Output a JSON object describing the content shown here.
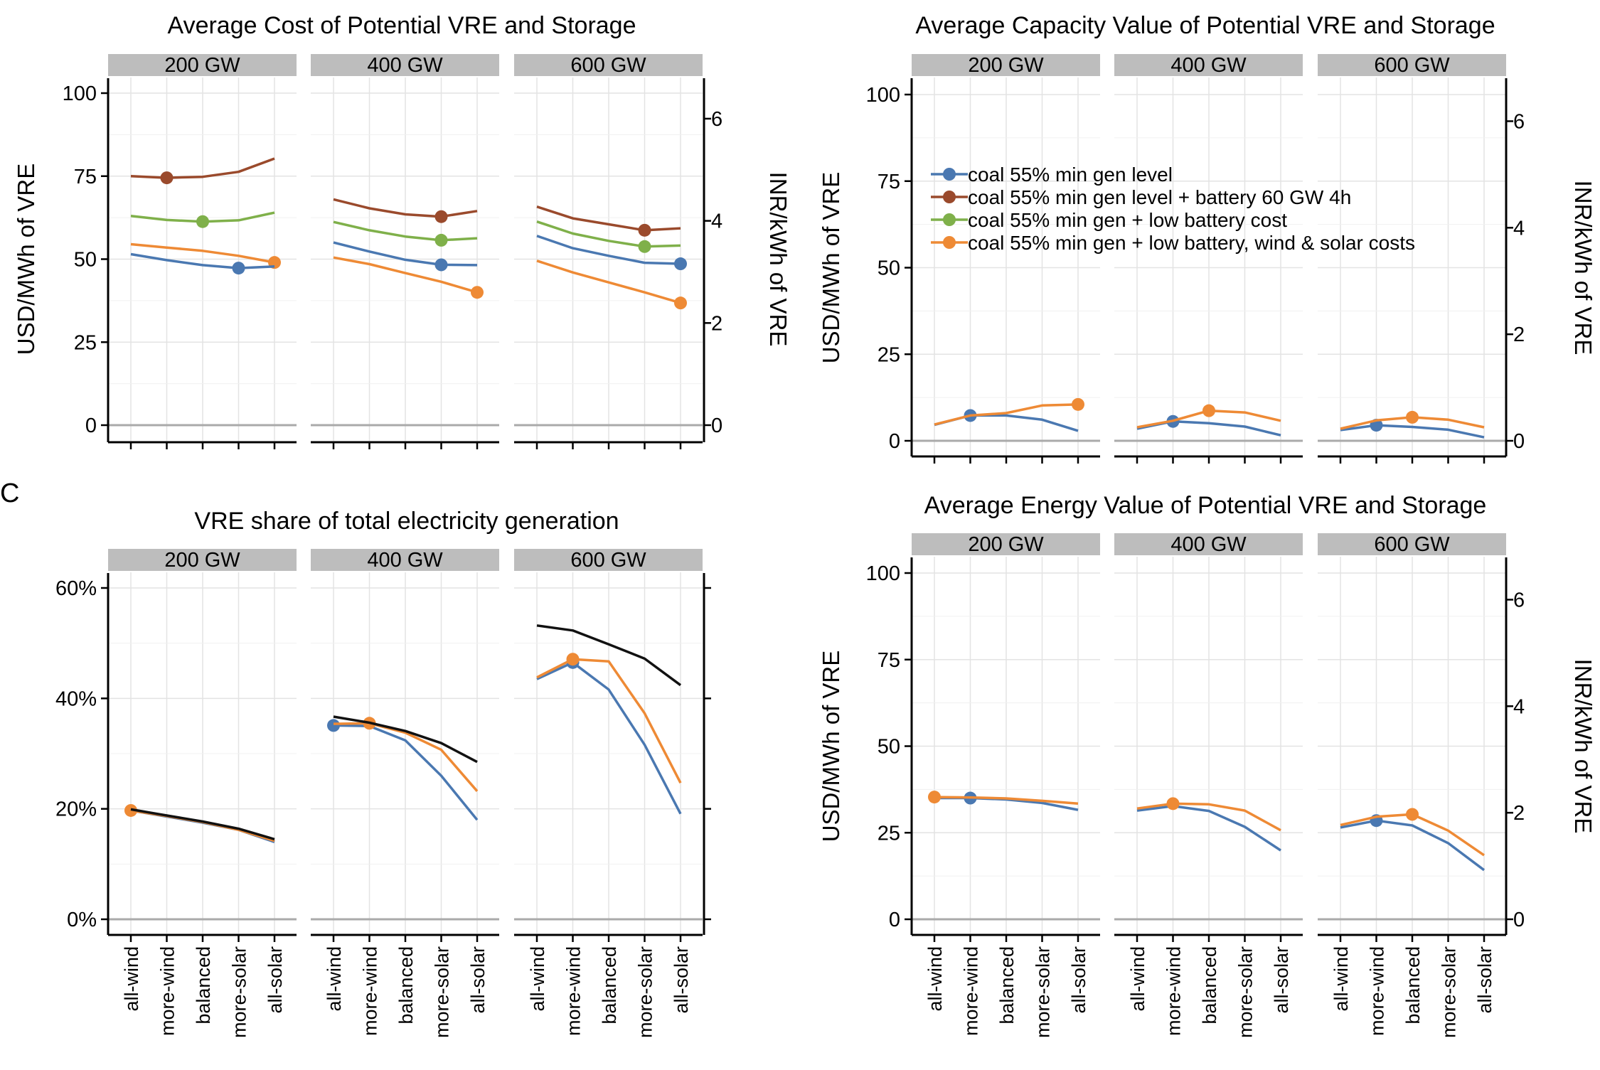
{
  "panel_label_c": "C",
  "categories": [
    "all-wind",
    "more-wind",
    "balanced",
    "more-solar",
    "all-solar"
  ],
  "facets": [
    "200 GW",
    "400 GW",
    "600 GW"
  ],
  "colors": {
    "blue": "#4a78b1",
    "brown": "#9a4a2c",
    "green": "#7fb04a",
    "orange": "#ee8a35",
    "black": "#111111",
    "strip": "#bdbdbd",
    "grid": "#e3e3e3",
    "zero": "#aaaaaa"
  },
  "legend": [
    {
      "label": "coal 55% min gen level",
      "color": "#4a78b1"
    },
    {
      "label": "coal 55% min gen level + battery 60 GW 4h",
      "color": "#9a4a2c"
    },
    {
      "label": "coal 55% min gen + low battery cost",
      "color": "#7fb04a"
    },
    {
      "label": "coal 55% min gen + low battery, wind & solar costs",
      "color": "#ee8a35"
    }
  ],
  "chart_data": [
    {
      "id": "cost",
      "type": "line",
      "title": "Average Cost of Potential VRE and Storage",
      "ylabel": "USD/MWh of VRE",
      "ylabel_right": "INR/kWh of VRE",
      "ylim": [
        0,
        100
      ],
      "yticks": [
        "0",
        "25",
        "50",
        "75",
        "100"
      ],
      "yticks_right": [
        "0",
        "2",
        "4",
        "6"
      ],
      "y2lim": [
        0,
        6.5
      ],
      "show_x_labels": false,
      "facets": [
        {
          "name": "200 GW",
          "series": [
            {
              "color": "brown",
              "values": [
                75,
                74.5,
                74.8,
                76.3,
                80.3
              ],
              "marker": 1
            },
            {
              "color": "green",
              "values": [
                63,
                61.8,
                61.3,
                61.7,
                64
              ],
              "marker": 2
            },
            {
              "color": "orange",
              "values": [
                54.5,
                53.5,
                52.5,
                51,
                49
              ],
              "marker": 4
            },
            {
              "color": "blue",
              "values": [
                51.5,
                49.7,
                48.2,
                47.3,
                47.8
              ],
              "marker": 3
            }
          ]
        },
        {
          "name": "400 GW",
          "series": [
            {
              "color": "brown",
              "values": [
                68,
                65.3,
                63.5,
                62.8,
                64.5
              ],
              "marker": 3
            },
            {
              "color": "green",
              "values": [
                61.2,
                58.7,
                56.8,
                55.7,
                56.3
              ],
              "marker": 3
            },
            {
              "color": "blue",
              "values": [
                55,
                52.3,
                49.8,
                48.3,
                48.2
              ],
              "marker": 3
            },
            {
              "color": "orange",
              "values": [
                50.5,
                48.5,
                45.8,
                43.2,
                40
              ],
              "marker": 4
            }
          ]
        },
        {
          "name": "600 GW",
          "series": [
            {
              "color": "brown",
              "values": [
                65.8,
                62.3,
                60.5,
                58.7,
                59.3
              ],
              "marker": 3
            },
            {
              "color": "green",
              "values": [
                61.3,
                57.7,
                55.5,
                53.8,
                54.1
              ],
              "marker": 3
            },
            {
              "color": "blue",
              "values": [
                57,
                53.3,
                51,
                48.9,
                48.6
              ],
              "marker": 4
            },
            {
              "color": "orange",
              "values": [
                49.5,
                46,
                43,
                40,
                36.8
              ],
              "marker": 4
            }
          ]
        }
      ]
    },
    {
      "id": "capacity",
      "type": "line",
      "title": "Average Capacity Value of Potential VRE and Storage",
      "ylabel": "USD/MWh of VRE",
      "ylabel_right": "INR/kWh of VRE",
      "ylim": [
        0,
        100
      ],
      "yticks": [
        "0",
        "25",
        "50",
        "75",
        "100"
      ],
      "yticks_right": [
        "0",
        "2",
        "4",
        "6"
      ],
      "y2lim": [
        0,
        6.5
      ],
      "show_x_labels": false,
      "facets": [
        {
          "name": "200 GW",
          "series": [
            {
              "color": "blue",
              "values": [
                4.6,
                7.3,
                7.3,
                6.1,
                2.9
              ],
              "marker": 1
            },
            {
              "color": "orange",
              "values": [
                4.7,
                7.3,
                8.0,
                10.2,
                10.5
              ],
              "marker": 4
            }
          ]
        },
        {
          "name": "400 GW",
          "series": [
            {
              "color": "blue",
              "values": [
                3.5,
                5.6,
                5.1,
                4.1,
                1.6
              ],
              "marker": 1
            },
            {
              "color": "orange",
              "values": [
                3.9,
                5.8,
                8.7,
                8.2,
                5.8
              ],
              "marker": 2
            }
          ]
        },
        {
          "name": "600 GW",
          "series": [
            {
              "color": "blue",
              "values": [
                3.1,
                4.5,
                4.0,
                3.2,
                1.0
              ],
              "marker": 1
            },
            {
              "color": "orange",
              "values": [
                3.5,
                5.9,
                6.8,
                6.1,
                3.9
              ],
              "marker": 2
            }
          ]
        }
      ]
    },
    {
      "id": "share",
      "type": "line",
      "title": "VRE share of total electricity generation",
      "ylabel": "",
      "ylim": [
        0,
        60
      ],
      "yticks": [
        "0%",
        "20%",
        "40%",
        "60%"
      ],
      "right_ticks_only": true,
      "show_x_labels": true,
      "facets": [
        {
          "name": "200 GW",
          "series": [
            {
              "color": "blue",
              "values": [
                19.7,
                18.6,
                17.5,
                16.2,
                14.0
              ],
              "marker": -1
            },
            {
              "color": "orange",
              "values": [
                19.7,
                18.7,
                17.6,
                16.2,
                14.2
              ],
              "marker": 0
            },
            {
              "color": "black",
              "values": [
                19.9,
                18.8,
                17.7,
                16.4,
                14.5
              ],
              "marker": -1
            }
          ]
        },
        {
          "name": "400 GW",
          "series": [
            {
              "color": "blue",
              "values": [
                35.1,
                35.0,
                32.4,
                26.0,
                18.0
              ],
              "marker": 0
            },
            {
              "color": "orange",
              "values": [
                35.4,
                35.5,
                33.8,
                30.7,
                23.2
              ],
              "marker": 1
            },
            {
              "color": "black",
              "values": [
                36.7,
                35.6,
                34.1,
                31.9,
                28.5
              ],
              "marker": -1
            }
          ]
        },
        {
          "name": "600 GW",
          "series": [
            {
              "color": "blue",
              "values": [
                43.5,
                46.5,
                41.6,
                31.6,
                19.1
              ],
              "marker": 1
            },
            {
              "color": "orange",
              "values": [
                43.8,
                47.1,
                46.7,
                37.3,
                24.7
              ],
              "marker": 1
            },
            {
              "color": "black",
              "values": [
                53.2,
                52.3,
                49.8,
                47.2,
                42.4
              ],
              "marker": -1
            }
          ]
        }
      ]
    },
    {
      "id": "energy",
      "type": "line",
      "title": "Average Energy Value of Potential VRE and Storage",
      "ylabel": "USD/MWh of VRE",
      "ylabel_right": "INR/kWh of VRE",
      "ylim": [
        0,
        100
      ],
      "yticks": [
        "0",
        "25",
        "50",
        "75",
        "100"
      ],
      "yticks_right": [
        "0",
        "2",
        "4",
        "6"
      ],
      "y2lim": [
        0,
        6.5
      ],
      "show_x_labels": true,
      "facets": [
        {
          "name": "200 GW",
          "series": [
            {
              "color": "blue",
              "values": [
                35.0,
                35.0,
                34.6,
                33.6,
                31.6
              ],
              "marker": 1
            },
            {
              "color": "orange",
              "values": [
                35.3,
                35.2,
                34.9,
                34.2,
                33.4
              ],
              "marker": 0
            }
          ]
        },
        {
          "name": "400 GW",
          "series": [
            {
              "color": "blue",
              "values": [
                31.4,
                32.7,
                31.3,
                26.7,
                19.9
              ],
              "marker": -1
            },
            {
              "color": "orange",
              "values": [
                32.0,
                33.4,
                33.2,
                31.4,
                25.7
              ],
              "marker": 1
            }
          ]
        },
        {
          "name": "600 GW",
          "series": [
            {
              "color": "blue",
              "values": [
                26.5,
                28.5,
                27.1,
                22.0,
                14.2
              ],
              "marker": 1
            },
            {
              "color": "orange",
              "values": [
                27.2,
                29.6,
                30.3,
                25.6,
                18.5
              ],
              "marker": 2
            }
          ]
        }
      ]
    }
  ]
}
